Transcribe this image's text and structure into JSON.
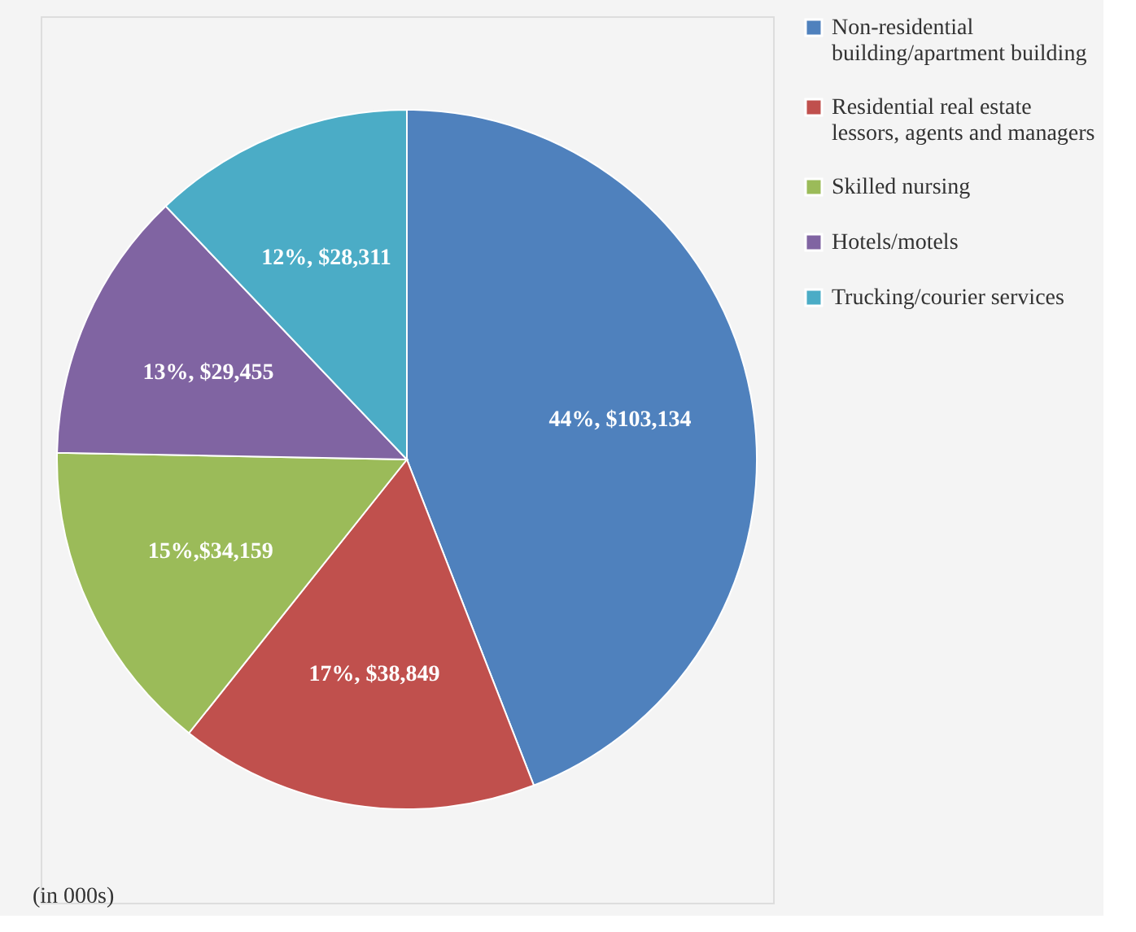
{
  "chart_data": {
    "type": "pie",
    "categories": [
      "Non-residential building/apartment building",
      "Residential real estate lessors, agents and managers",
      "Skilled nursing",
      "Hotels/motels",
      "Trucking/courier services"
    ],
    "values": [
      103134,
      38849,
      34159,
      29455,
      28311
    ],
    "colors": [
      "#4f81bd",
      "#c0504d",
      "#9bbb59",
      "#8064a2",
      "#4bacc6"
    ],
    "value_labels": [
      "44%, $103,134",
      "17%, $38,849",
      "15%,$34,159",
      "13%, $29,455",
      "12%, $28,311"
    ],
    "legend": "right",
    "annotations": [
      "(in 000s)"
    ]
  }
}
